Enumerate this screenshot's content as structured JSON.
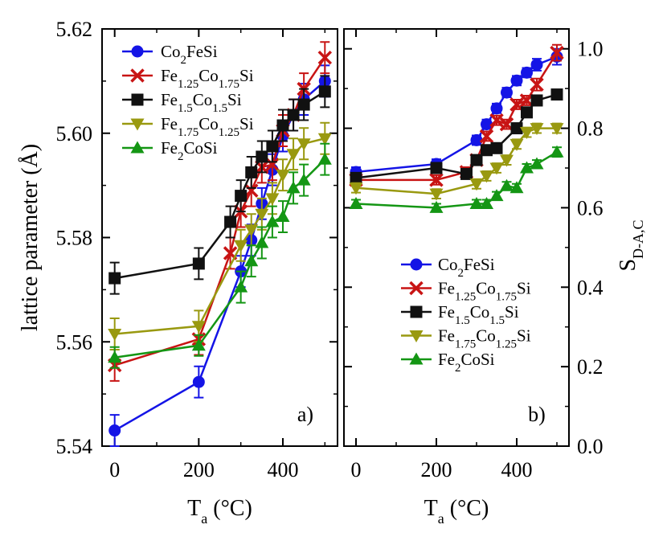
{
  "chart_data": [
    {
      "type": "line",
      "panel_label": "a)",
      "ylabel": "lattice parameter (Å)",
      "xlabel_main": "T",
      "xlabel_sub": "a",
      "xlabel_unit": " (°C)",
      "xlim": [
        -30,
        530
      ],
      "ylim": [
        5.54,
        5.62
      ],
      "xticks": [
        0,
        200,
        400
      ],
      "yticks": [
        5.54,
        5.56,
        5.58,
        5.6,
        5.62
      ],
      "ytick_labels": [
        "5.54",
        "5.56",
        "5.58",
        "5.60",
        "5.62"
      ],
      "legend_position": "top-left",
      "series": [
        {
          "name": "Co2FeSi",
          "label_parts": [
            [
              "Co",
              ""
            ],
            [
              "2",
              "sub"
            ],
            [
              "FeSi",
              ""
            ]
          ],
          "color": "#1414e6",
          "marker": "circle",
          "x": [
            0,
            200,
            300,
            325,
            350,
            375,
            400,
            425,
            450,
            500
          ],
          "y": [
            5.543,
            5.5523,
            5.5735,
            5.5795,
            5.5865,
            5.593,
            5.5995,
            5.6035,
            5.6065,
            5.61
          ],
          "err": [
            0.003,
            0.003,
            0.003,
            0.003,
            0.003,
            0.003,
            0.003,
            0.003,
            0.003,
            0.003
          ]
        },
        {
          "name": "Fe1.25Co1.75Si",
          "label_parts": [
            [
              "Fe",
              ""
            ],
            [
              "1.25",
              "sub"
            ],
            [
              "Co",
              ""
            ],
            [
              "1.75",
              "sub"
            ],
            [
              "Si",
              ""
            ]
          ],
          "color": "#c81414",
          "marker": "x",
          "x": [
            0,
            200,
            275,
            300,
            325,
            350,
            375,
            400,
            425,
            450,
            500
          ],
          "y": [
            5.5555,
            5.5605,
            5.577,
            5.585,
            5.589,
            5.5935,
            5.594,
            5.6005,
            5.6035,
            5.6085,
            5.6145
          ],
          "err": [
            0.003,
            0.003,
            0.003,
            0.003,
            0.003,
            0.003,
            0.003,
            0.003,
            0.003,
            0.003,
            0.003
          ]
        },
        {
          "name": "Fe1.5Co1.5Si",
          "label_parts": [
            [
              "Fe",
              ""
            ],
            [
              "1.5",
              "sub"
            ],
            [
              "Co",
              ""
            ],
            [
              "1.5",
              "sub"
            ],
            [
              "Si",
              ""
            ]
          ],
          "color": "#111111",
          "marker": "square",
          "x": [
            0,
            200,
            275,
            300,
            325,
            350,
            375,
            400,
            425,
            450,
            500
          ],
          "y": [
            5.5722,
            5.575,
            5.583,
            5.588,
            5.5925,
            5.5955,
            5.5975,
            5.6015,
            5.6035,
            5.6055,
            5.608
          ],
          "err": [
            0.003,
            0.003,
            0.003,
            0.003,
            0.003,
            0.003,
            0.003,
            0.003,
            0.003,
            0.003,
            0.003
          ]
        },
        {
          "name": "Fe1.75Co1.25Si",
          "label_parts": [
            [
              "Fe",
              ""
            ],
            [
              "1.75",
              "sub"
            ],
            [
              "Co",
              ""
            ],
            [
              "1.25",
              "sub"
            ],
            [
              "Si",
              ""
            ]
          ],
          "color": "#999910",
          "marker": "triangle-down",
          "x": [
            0,
            200,
            300,
            325,
            350,
            375,
            400,
            425,
            450,
            500
          ],
          "y": [
            5.5615,
            5.563,
            5.5785,
            5.5815,
            5.5845,
            5.5875,
            5.592,
            5.596,
            5.598,
            5.599
          ],
          "err": [
            0.003,
            0.003,
            0.003,
            0.003,
            0.003,
            0.003,
            0.003,
            0.003,
            0.003,
            0.003
          ]
        },
        {
          "name": "Fe2CoSi",
          "label_parts": [
            [
              "Fe",
              ""
            ],
            [
              "2",
              "sub"
            ],
            [
              "CoSi",
              ""
            ]
          ],
          "color": "#149614",
          "marker": "triangle-up",
          "x": [
            0,
            200,
            300,
            325,
            350,
            375,
            400,
            425,
            450,
            500
          ],
          "y": [
            5.557,
            5.5593,
            5.5705,
            5.5755,
            5.579,
            5.583,
            5.584,
            5.5895,
            5.591,
            5.595
          ],
          "err": [
            0.002,
            0.002,
            0.003,
            0.003,
            0.003,
            0.003,
            0.003,
            0.003,
            0.003,
            0.003
          ]
        }
      ]
    },
    {
      "type": "line",
      "panel_label": "b)",
      "ylabel_main": "S",
      "ylabel_sub": "D-A,C",
      "xlabel_main": "T",
      "xlabel_sub": "a",
      "xlabel_unit": " (°C)",
      "xlim": [
        -30,
        530
      ],
      "ylim": [
        0.0,
        1.05
      ],
      "xticks": [
        0,
        200,
        400
      ],
      "yticks": [
        0.0,
        0.2,
        0.4,
        0.6,
        0.8,
        1.0
      ],
      "ytick_labels": [
        "0.0",
        "0.2",
        "0.4",
        "0.6",
        "0.8",
        "1.0"
      ],
      "legend_position": "bottom-center",
      "series": [
        {
          "name": "Co2FeSi",
          "label_parts": [
            [
              "Co",
              ""
            ],
            [
              "2",
              "sub"
            ],
            [
              "FeSi",
              ""
            ]
          ],
          "color": "#1414e6",
          "marker": "circle",
          "x": [
            0,
            200,
            300,
            325,
            350,
            375,
            400,
            425,
            450,
            500
          ],
          "y": [
            0.69,
            0.71,
            0.77,
            0.81,
            0.85,
            0.89,
            0.92,
            0.94,
            0.96,
            0.98
          ],
          "err": [
            0.012,
            0.012,
            0.012,
            0.012,
            0.012,
            0.012,
            0.012,
            0.012,
            0.015,
            0.02
          ]
        },
        {
          "name": "Fe1.25Co1.75Si",
          "label_parts": [
            [
              "Fe",
              ""
            ],
            [
              "1.25",
              "sub"
            ],
            [
              "Co",
              ""
            ],
            [
              "1.75",
              "sub"
            ],
            [
              "Si",
              ""
            ]
          ],
          "color": "#c81414",
          "marker": "x",
          "x": [
            0,
            200,
            275,
            300,
            325,
            350,
            375,
            400,
            425,
            450,
            500
          ],
          "y": [
            0.67,
            0.67,
            0.69,
            0.72,
            0.78,
            0.82,
            0.81,
            0.86,
            0.87,
            0.91,
            0.99
          ],
          "err": [
            0.012,
            0.012,
            0.012,
            0.012,
            0.012,
            0.012,
            0.012,
            0.012,
            0.012,
            0.015,
            0.02
          ]
        },
        {
          "name": "Fe1.5Co1.5Si",
          "label_parts": [
            [
              "Fe",
              ""
            ],
            [
              "1.5",
              "sub"
            ],
            [
              "Co",
              ""
            ],
            [
              "1.5",
              "sub"
            ],
            [
              "Si",
              ""
            ]
          ],
          "color": "#111111",
          "marker": "square",
          "x": [
            0,
            200,
            275,
            300,
            325,
            350,
            400,
            425,
            450,
            500
          ],
          "y": [
            0.675,
            0.7,
            0.685,
            0.72,
            0.745,
            0.75,
            0.8,
            0.84,
            0.87,
            0.885
          ],
          "err": [
            0.012,
            0.012,
            0.012,
            0.012,
            0.012,
            0.012,
            0.012,
            0.012,
            0.012,
            0.012
          ]
        },
        {
          "name": "Fe1.75Co1.25Si",
          "label_parts": [
            [
              "Fe",
              ""
            ],
            [
              "1.75",
              "sub"
            ],
            [
              "Co",
              ""
            ],
            [
              "1.25",
              "sub"
            ],
            [
              "Si",
              ""
            ]
          ],
          "color": "#999910",
          "marker": "triangle-down",
          "x": [
            0,
            200,
            300,
            325,
            350,
            375,
            400,
            425,
            450,
            500
          ],
          "y": [
            0.65,
            0.635,
            0.66,
            0.68,
            0.7,
            0.72,
            0.76,
            0.79,
            0.8,
            0.8
          ],
          "err": [
            0.012,
            0.012,
            0.012,
            0.012,
            0.012,
            0.012,
            0.012,
            0.012,
            0.012,
            0.012
          ]
        },
        {
          "name": "Fe2CoSi",
          "label_parts": [
            [
              "Fe",
              ""
            ],
            [
              "2",
              "sub"
            ],
            [
              "CoSi",
              ""
            ]
          ],
          "color": "#149614",
          "marker": "triangle-up",
          "x": [
            0,
            200,
            300,
            325,
            350,
            375,
            400,
            425,
            450,
            500
          ],
          "y": [
            0.61,
            0.6,
            0.61,
            0.61,
            0.63,
            0.655,
            0.65,
            0.7,
            0.71,
            0.74
          ],
          "err": [
            0.01,
            0.01,
            0.01,
            0.01,
            0.01,
            0.01,
            0.01,
            0.01,
            0.01,
            0.012
          ]
        }
      ]
    }
  ]
}
